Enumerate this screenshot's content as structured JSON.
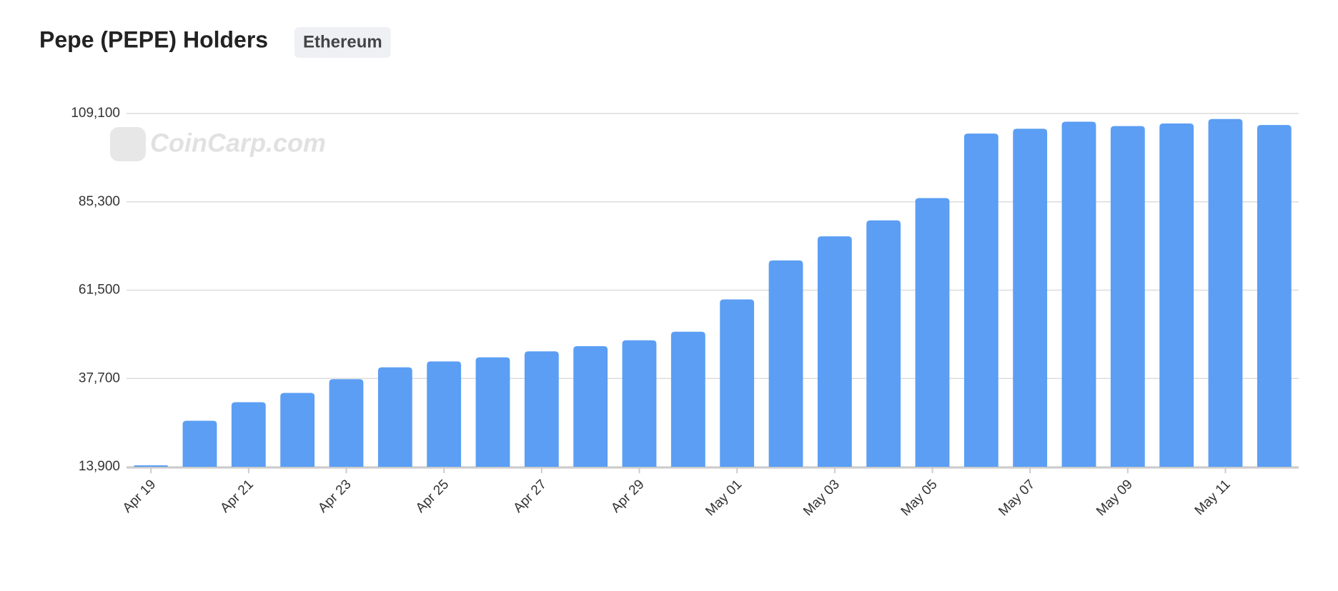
{
  "chart_data": {
    "type": "bar",
    "title": "Pepe (PEPE) Holders",
    "badge": "Ethereum",
    "watermark": "CoinCarp.com",
    "categories": [
      "Apr 19",
      null,
      "Apr 21",
      null,
      "Apr 23",
      null,
      "Apr 25",
      null,
      "Apr 27",
      null,
      "Apr 29",
      null,
      "May 01",
      null,
      "May 03",
      null,
      "May 05",
      null,
      "May 07",
      null,
      "May 09",
      null,
      "May 11",
      null
    ],
    "values": [
      14300,
      26300,
      31300,
      33800,
      37500,
      40700,
      42300,
      43400,
      45000,
      46400,
      48000,
      50300,
      59000,
      69500,
      76000,
      80300,
      86300,
      103700,
      105000,
      106900,
      105700,
      106400,
      107600,
      106000
    ],
    "color": "#5b9ef4",
    "ylim": [
      13900,
      109100
    ],
    "yticks": [
      {
        "value": 13900,
        "label": "13,900"
      },
      {
        "value": 37700,
        "label": "37,700"
      },
      {
        "value": 61500,
        "label": "61,500"
      },
      {
        "value": 85300,
        "label": "85,300"
      },
      {
        "value": 109100,
        "label": "109,100"
      }
    ],
    "grid": true
  }
}
